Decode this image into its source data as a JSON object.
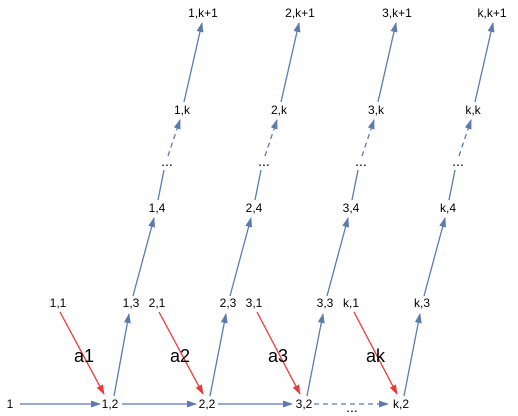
{
  "colors": {
    "blue_edge": "#5b7bb0",
    "red_edge": "#e83a3a"
  },
  "nodes": [
    {
      "id": "n1",
      "label": "1"
    },
    {
      "id": "n12",
      "label": "1,2"
    },
    {
      "id": "n22",
      "label": "2,2"
    },
    {
      "id": "n32",
      "label": "3,2"
    },
    {
      "id": "nk2",
      "label": "k,2"
    },
    {
      "id": "n11",
      "label": "1,1"
    },
    {
      "id": "n21",
      "label": "2,1"
    },
    {
      "id": "n31",
      "label": "3,1"
    },
    {
      "id": "nk1",
      "label": "k,1"
    },
    {
      "id": "n13",
      "label": "1,3"
    },
    {
      "id": "n23",
      "label": "2,3"
    },
    {
      "id": "n33",
      "label": "3,3"
    },
    {
      "id": "nk3",
      "label": "k,3"
    },
    {
      "id": "n14",
      "label": "1,4"
    },
    {
      "id": "n24",
      "label": "2,4"
    },
    {
      "id": "n34",
      "label": "3,4"
    },
    {
      "id": "nk4",
      "label": "k,4"
    },
    {
      "id": "n1d",
      "label": "..."
    },
    {
      "id": "n2d",
      "label": "..."
    },
    {
      "id": "n3d",
      "label": "..."
    },
    {
      "id": "nkd",
      "label": "..."
    },
    {
      "id": "n1k",
      "label": "1,k"
    },
    {
      "id": "n2k",
      "label": "2,k"
    },
    {
      "id": "n3k",
      "label": "3,k"
    },
    {
      "id": "nkk",
      "label": "k,k"
    },
    {
      "id": "n1kp",
      "label": "1,k+1"
    },
    {
      "id": "n2kp",
      "label": "2,k+1"
    },
    {
      "id": "n3kp",
      "label": "3,k+1"
    },
    {
      "id": "nkkp",
      "label": "k,k+1"
    },
    {
      "id": "nbd",
      "label": "..."
    }
  ],
  "edge_labels": [
    {
      "id": "a1",
      "label": "a1"
    },
    {
      "id": "a2",
      "label": "a2"
    },
    {
      "id": "a3",
      "label": "a3"
    },
    {
      "id": "ak",
      "label": "ak"
    }
  ]
}
